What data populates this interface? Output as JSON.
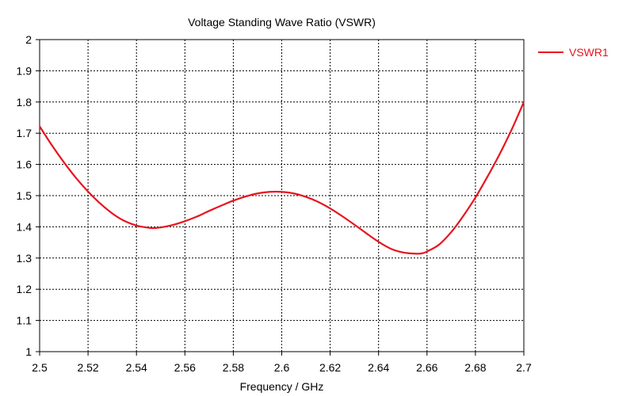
{
  "chart_data": {
    "type": "line",
    "title": "Voltage Standing Wave Ratio (VSWR)",
    "xlabel": "Frequency / GHz",
    "ylabel": "",
    "xlim": [
      2.5,
      2.7
    ],
    "ylim": [
      1,
      2
    ],
    "grid": true,
    "legend": "top-right",
    "x_ticks": [
      2.5,
      2.52,
      2.54,
      2.56,
      2.58,
      2.6,
      2.62,
      2.64,
      2.66,
      2.68,
      2.7
    ],
    "x_tick_labels": [
      "2.5",
      "2.52",
      "2.54",
      "2.56",
      "2.58",
      "2.6",
      "2.62",
      "2.64",
      "2.66",
      "2.68",
      "2.7"
    ],
    "y_ticks": [
      1,
      1.1,
      1.2,
      1.3,
      1.4,
      1.5,
      1.6,
      1.7,
      1.8,
      1.9,
      2
    ],
    "y_tick_labels": [
      "1",
      "1.1",
      "1.2",
      "1.3",
      "1.4",
      "1.5",
      "1.6",
      "1.7",
      "1.8",
      "1.9",
      "2"
    ],
    "series": [
      {
        "name": "VSWR1",
        "color": "#e8141e",
        "x": [
          2.5,
          2.505,
          2.51,
          2.515,
          2.52,
          2.525,
          2.53,
          2.535,
          2.54,
          2.545,
          2.547,
          2.55,
          2.555,
          2.56,
          2.565,
          2.57,
          2.575,
          2.58,
          2.585,
          2.59,
          2.595,
          2.6,
          2.605,
          2.61,
          2.615,
          2.62,
          2.625,
          2.63,
          2.635,
          2.64,
          2.645,
          2.65,
          2.655,
          2.658,
          2.66,
          2.665,
          2.67,
          2.675,
          2.68,
          2.685,
          2.69,
          2.695,
          2.7
        ],
        "values": [
          1.722,
          1.662,
          1.607,
          1.557,
          1.513,
          1.475,
          1.443,
          1.419,
          1.404,
          1.397,
          1.396,
          1.398,
          1.406,
          1.418,
          1.433,
          1.451,
          1.468,
          1.484,
          1.497,
          1.507,
          1.512,
          1.512,
          1.507,
          1.496,
          1.48,
          1.459,
          1.434,
          1.407,
          1.379,
          1.352,
          1.33,
          1.318,
          1.314,
          1.315,
          1.321,
          1.343,
          1.383,
          1.435,
          1.494,
          1.561,
          1.633,
          1.712,
          1.8
        ]
      }
    ]
  }
}
